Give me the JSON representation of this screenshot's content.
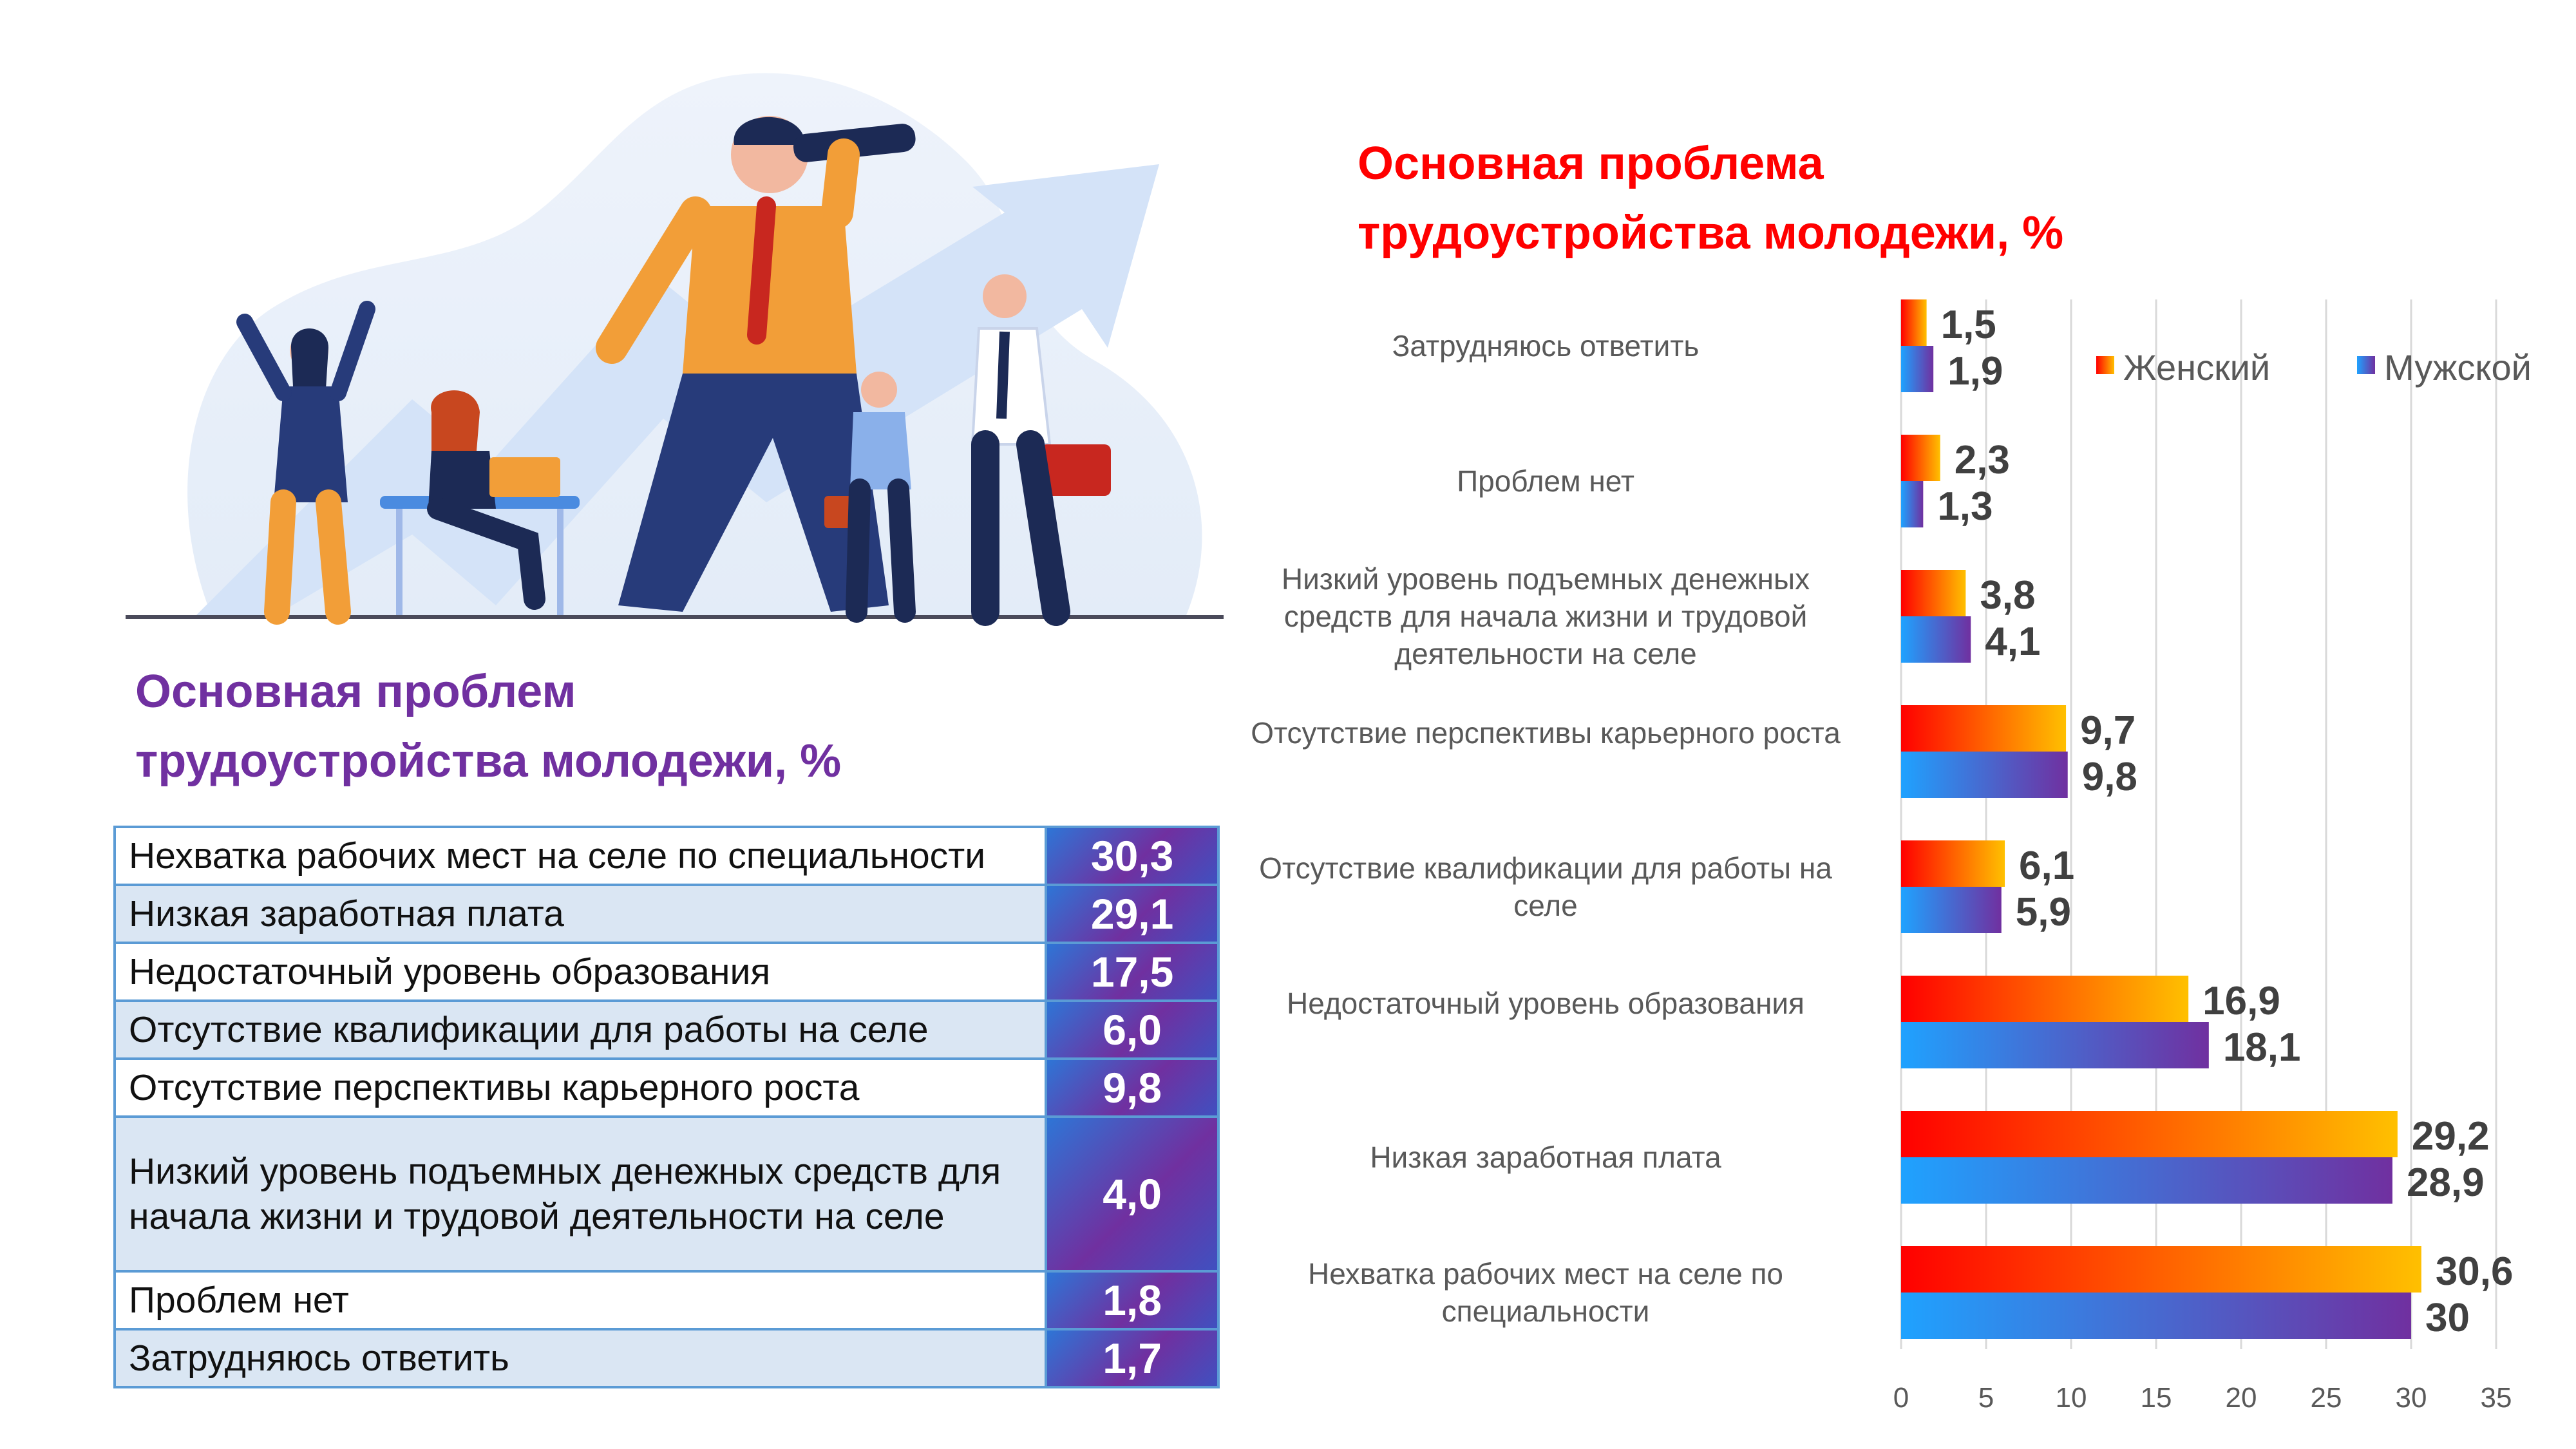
{
  "left": {
    "title_line1": "Основная проблем",
    "title_line2": "трудоустройства молодежи, %",
    "rows": [
      {
        "label": "Нехватка рабочих мест на селе по специальности",
        "value": "30,3"
      },
      {
        "label": "Низкая заработная плата",
        "value": "29,1"
      },
      {
        "label": "Недостаточный уровень образования",
        "value": "17,5"
      },
      {
        "label": "Отсутствие квалификации для работы на селе",
        "value": "6,0"
      },
      {
        "label": "Отсутствие перспективы карьерного роста",
        "value": "9,8"
      },
      {
        "label": "Низкий уровень подъемных денежных средств для начала жизни и трудовой деятельности на селе",
        "value": "4,0"
      },
      {
        "label": "Проблем нет",
        "value": "1,8"
      },
      {
        "label": "Затрудняюсь ответить",
        "value": "1,7"
      }
    ]
  },
  "colors": {
    "female_start": "#ff0000",
    "female_end": "#ffc000",
    "male_start": "#1fa2ff",
    "male_end": "#7030a0",
    "axis_grid": "#d9d9d9",
    "label_text": "#595959",
    "value_text": "#404040"
  },
  "chart_data": {
    "type": "bar",
    "orientation": "horizontal",
    "title": "Основная проблема трудоустройства молодежи, %",
    "categories": [
      "Затрудняюсь ответить",
      "Проблем нет",
      "Низкий уровень подъемных денежных средств для начала жизни и трудовой деятельности на селе",
      "Отсутствие перспективы карьерного роста",
      "Отсутствие квалификации для работы на селе",
      "Недостаточный уровень образования",
      "Низкая заработная плата",
      "Нехватка рабочих мест на селе по специальности"
    ],
    "series": [
      {
        "name": "Женский",
        "values": [
          1.5,
          2.3,
          3.8,
          9.7,
          6.1,
          16.9,
          29.2,
          30.6
        ],
        "labels": [
          "1,5",
          "2,3",
          "3,8",
          "9,7",
          "6,1",
          "16,9",
          "29,2",
          "30,6"
        ]
      },
      {
        "name": "Мужской",
        "values": [
          1.9,
          1.3,
          4.1,
          9.8,
          5.9,
          18.1,
          28.9,
          30
        ],
        "labels": [
          "1,9",
          "1,3",
          "4,1",
          "9,8",
          "5,9",
          "18,1",
          "28,9",
          "30"
        ]
      }
    ],
    "xlim": [
      0,
      35
    ],
    "xticks": [
      "0",
      "5",
      "10",
      "15",
      "20",
      "25",
      "30",
      "35"
    ],
    "grid": true,
    "legend_position": "top-right"
  }
}
